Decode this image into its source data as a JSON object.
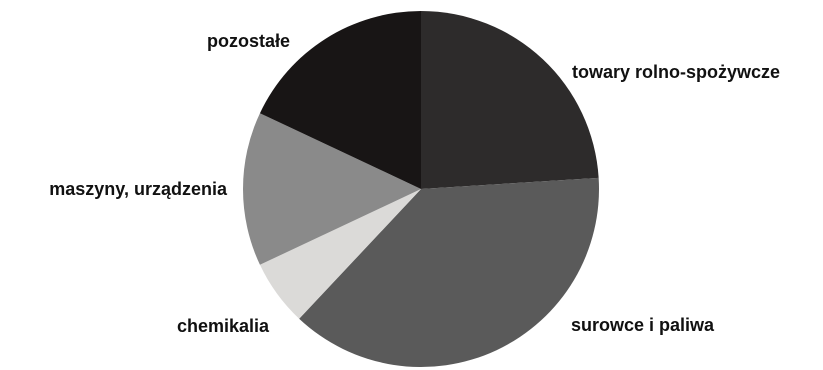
{
  "chart_data": {
    "type": "pie",
    "title": "",
    "start_angle_deg": 0,
    "direction": "clockwise",
    "slices": [
      {
        "label": "towary rolno-spożywcze",
        "value": 24.0,
        "color": "#2d2b2b"
      },
      {
        "label": "surowce i paliwa",
        "value": 38.0,
        "color": "#5a5a5a"
      },
      {
        "label": "chemikalia",
        "value": 6.0,
        "color": "#dbdad8"
      },
      {
        "label": "maszyny, urządzenia",
        "value": 14.0,
        "color": "#8a8a8a"
      },
      {
        "label": "pozostałe",
        "value": 18.0,
        "color": "#181515"
      }
    ]
  }
}
